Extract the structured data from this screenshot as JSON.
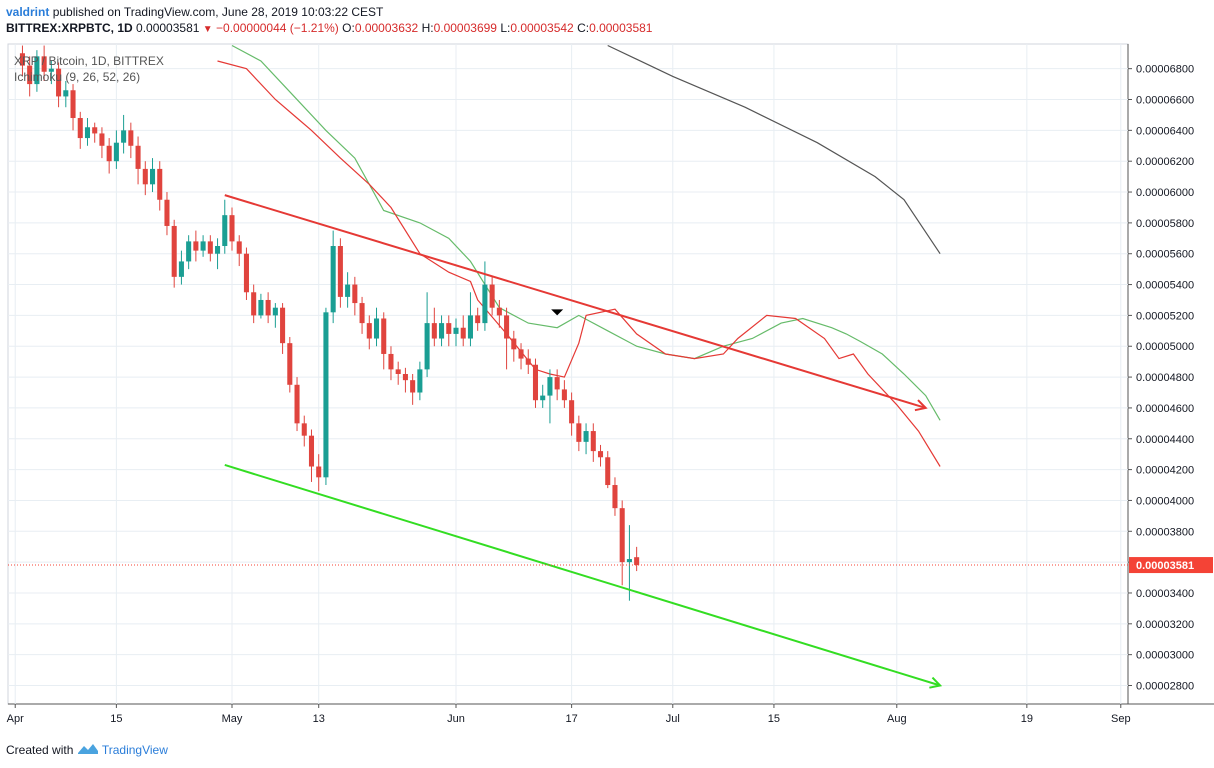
{
  "header": {
    "author": "valdrint",
    "published_text": "published on TradingView.com, June 28, 2019 10:03:22 CEST",
    "symbol": "BITTREX:XRPBTC, 1D",
    "last": "0.00003581",
    "change": "−0.00000044 (−1.21%)",
    "o_label": "O:",
    "o": "0.00003632",
    "h_label": "H:",
    "h": "0.00003699",
    "l_label": "L:",
    "l": "0.00003542",
    "c_label": "C:",
    "c": "0.00003581"
  },
  "footer": {
    "created_with": "Created with",
    "brand": "TradingView"
  },
  "colors": {
    "up": "#1a9e93",
    "down": "#e0443e",
    "tenkan": "#e53935",
    "kijun": "#66bb6a",
    "ma": "#555555",
    "resistance": "#e53935",
    "support": "#33dd22",
    "grid": "#e8eef3",
    "price_tag": "#f44336"
  },
  "chart_data": {
    "type": "candlestick",
    "title": "XRP / Bitcoin, 1D, BITTREX",
    "indicator": "Ichimoku (9, 26, 52, 26)",
    "y_ticks": [
      "0.00006800",
      "0.00006600",
      "0.00006400",
      "0.00006200",
      "0.00006000",
      "0.00005800",
      "0.00005600",
      "0.00005400",
      "0.00005200",
      "0.00005000",
      "0.00004800",
      "0.00004600",
      "0.00004400",
      "0.00004200",
      "0.00004000",
      "0.00003800",
      "0.00003600",
      "0.00003400",
      "0.00003200",
      "0.00003000",
      "0.00002800"
    ],
    "ylim": [
      2.68e-05,
      6.96e-05
    ],
    "x_ticks": [
      {
        "label": "Apr",
        "date": "2019-04-01"
      },
      {
        "label": "15",
        "date": "2019-04-15"
      },
      {
        "label": "May",
        "date": "2019-05-01"
      },
      {
        "label": "13",
        "date": "2019-05-13"
      },
      {
        "label": "Jun",
        "date": "2019-06-01"
      },
      {
        "label": "17",
        "date": "2019-06-17"
      },
      {
        "label": "Jul",
        "date": "2019-07-01"
      },
      {
        "label": "15",
        "date": "2019-07-15"
      },
      {
        "label": "Aug",
        "date": "2019-08-01"
      },
      {
        "label": "19",
        "date": "2019-08-19"
      },
      {
        "label": "Sep",
        "date": "2019-09-01"
      }
    ],
    "xlim": [
      "2019-03-31",
      "2019-09-02"
    ],
    "start_date": "2019-04-02",
    "current_price": 3.581e-05,
    "current_price_label": "0.00003581",
    "candles": [
      [
        6.9,
        6.82,
        6.95,
        6.75
      ],
      [
        6.82,
        6.7,
        6.88,
        6.62
      ],
      [
        6.7,
        6.88,
        6.92,
        6.65
      ],
      [
        6.88,
        6.78,
        6.95,
        6.72
      ],
      [
        6.78,
        6.8,
        6.85,
        6.7
      ],
      [
        6.8,
        6.62,
        6.84,
        6.55
      ],
      [
        6.62,
        6.66,
        6.72,
        6.55
      ],
      [
        6.66,
        6.48,
        6.7,
        6.4
      ],
      [
        6.48,
        6.35,
        6.52,
        6.28
      ],
      [
        6.35,
        6.42,
        6.48,
        6.3
      ],
      [
        6.42,
        6.38,
        6.45,
        6.32
      ],
      [
        6.38,
        6.3,
        6.42,
        6.22
      ],
      [
        6.3,
        6.2,
        6.35,
        6.12
      ],
      [
        6.2,
        6.32,
        6.4,
        6.15
      ],
      [
        6.32,
        6.4,
        6.5,
        6.25
      ],
      [
        6.4,
        6.3,
        6.45,
        6.22
      ],
      [
        6.3,
        6.15,
        6.36,
        6.05
      ],
      [
        6.15,
        6.05,
        6.2,
        5.98
      ],
      [
        6.05,
        6.15,
        6.22,
        6.0
      ],
      [
        6.15,
        5.95,
        6.2,
        5.88
      ],
      [
        5.95,
        5.78,
        6.0,
        5.72
      ],
      [
        5.78,
        5.45,
        5.82,
        5.38
      ],
      [
        5.45,
        5.55,
        5.62,
        5.4
      ],
      [
        5.55,
        5.68,
        5.72,
        5.5
      ],
      [
        5.68,
        5.62,
        5.75,
        5.55
      ],
      [
        5.62,
        5.68,
        5.72,
        5.58
      ],
      [
        5.68,
        5.6,
        5.72,
        5.55
      ],
      [
        5.6,
        5.65,
        5.7,
        5.5
      ],
      [
        5.65,
        5.85,
        5.95,
        5.6
      ],
      [
        5.85,
        5.68,
        5.9,
        5.62
      ],
      [
        5.68,
        5.6,
        5.72,
        5.52
      ],
      [
        5.6,
        5.35,
        5.64,
        5.3
      ],
      [
        5.35,
        5.2,
        5.4,
        5.15
      ],
      [
        5.2,
        5.3,
        5.34,
        5.18
      ],
      [
        5.3,
        5.2,
        5.35,
        5.15
      ],
      [
        5.2,
        5.25,
        5.28,
        5.12
      ],
      [
        5.25,
        5.02,
        5.28,
        4.95
      ],
      [
        5.02,
        4.75,
        5.06,
        4.7
      ],
      [
        4.75,
        4.5,
        4.8,
        4.45
      ],
      [
        4.5,
        4.42,
        4.55,
        4.35
      ],
      [
        4.42,
        4.22,
        4.46,
        4.12
      ],
      [
        4.22,
        4.15,
        4.3,
        4.06
      ],
      [
        4.15,
        5.22,
        5.25,
        4.1
      ],
      [
        5.22,
        5.65,
        5.75,
        5.15
      ],
      [
        5.65,
        5.32,
        5.7,
        5.25
      ],
      [
        5.32,
        5.4,
        5.48,
        5.25
      ],
      [
        5.4,
        5.28,
        5.45,
        5.2
      ],
      [
        5.28,
        5.15,
        5.32,
        5.08
      ],
      [
        5.15,
        5.05,
        5.2,
        4.98
      ],
      [
        5.05,
        5.18,
        5.25,
        5.0
      ],
      [
        5.18,
        4.95,
        5.22,
        4.85
      ],
      [
        4.95,
        4.85,
        5.0,
        4.78
      ],
      [
        4.85,
        4.82,
        4.9,
        4.75
      ],
      [
        4.82,
        4.78,
        4.86,
        4.7
      ],
      [
        4.78,
        4.7,
        4.82,
        4.62
      ],
      [
        4.7,
        4.85,
        4.9,
        4.65
      ],
      [
        4.85,
        5.15,
        5.35,
        4.8
      ],
      [
        5.15,
        5.05,
        5.25,
        5.0
      ],
      [
        5.05,
        5.15,
        5.2,
        5.0
      ],
      [
        5.15,
        5.08,
        5.2,
        5.0
      ],
      [
        5.08,
        5.12,
        5.18,
        5.0
      ],
      [
        5.12,
        5.05,
        5.2,
        5.0
      ],
      [
        5.05,
        5.2,
        5.35,
        5.0
      ],
      [
        5.2,
        5.15,
        5.25,
        5.1
      ],
      [
        5.15,
        5.4,
        5.55,
        5.1
      ],
      [
        5.4,
        5.25,
        5.45,
        5.2
      ],
      [
        5.25,
        5.2,
        5.3,
        5.12
      ],
      [
        5.2,
        5.05,
        5.25,
        4.85
      ],
      [
        5.05,
        4.98,
        5.1,
        4.9
      ],
      [
        4.98,
        4.92,
        5.02,
        4.85
      ],
      [
        4.92,
        4.88,
        4.98,
        4.82
      ],
      [
        4.88,
        4.65,
        4.92,
        4.6
      ],
      [
        4.65,
        4.68,
        4.75,
        4.6
      ],
      [
        4.68,
        4.8,
        4.85,
        4.5
      ],
      [
        4.8,
        4.72,
        4.85,
        4.65
      ],
      [
        4.72,
        4.65,
        4.78,
        4.6
      ],
      [
        4.65,
        4.5,
        4.7,
        4.42
      ],
      [
        4.5,
        4.38,
        4.55,
        4.32
      ],
      [
        4.38,
        4.45,
        4.5,
        4.3
      ],
      [
        4.45,
        4.32,
        4.5,
        4.25
      ],
      [
        4.32,
        4.28,
        4.36,
        4.22
      ],
      [
        4.28,
        4.1,
        4.32,
        4.08
      ],
      [
        4.1,
        3.95,
        4.15,
        3.9
      ],
      [
        3.95,
        3.6,
        4.0,
        3.45
      ],
      [
        3.6,
        3.62,
        3.84,
        3.35
      ],
      [
        3.632,
        3.581,
        3.699,
        3.542
      ]
    ],
    "price_scale_note": "OHLC values in units of 1e-5 BTC",
    "tenkan_line": [
      [
        27,
        6.85
      ],
      [
        31,
        6.8
      ],
      [
        35,
        6.6
      ],
      [
        38,
        6.48
      ],
      [
        40,
        6.4
      ],
      [
        44,
        6.22
      ],
      [
        48,
        6.05
      ],
      [
        51,
        5.9
      ],
      [
        55,
        5.6
      ],
      [
        59,
        5.48
      ],
      [
        62,
        5.42
      ],
      [
        63,
        5.3
      ],
      [
        67,
        5.08
      ],
      [
        71,
        4.85
      ],
      [
        73,
        4.82
      ],
      [
        75,
        4.8
      ],
      [
        77,
        5.02
      ],
      [
        78,
        5.2
      ],
      [
        82,
        5.24
      ],
      [
        85,
        5.08
      ],
      [
        89,
        4.95
      ],
      [
        93,
        4.92
      ],
      [
        97,
        4.95
      ],
      [
        99,
        5.05
      ],
      [
        103,
        5.2
      ],
      [
        107,
        5.18
      ],
      [
        111,
        5.05
      ],
      [
        113,
        4.92
      ],
      [
        115,
        4.95
      ],
      [
        117,
        4.82
      ],
      [
        121,
        4.62
      ],
      [
        124,
        4.45
      ],
      [
        127,
        4.22
      ]
    ],
    "kijun_line": [
      [
        29,
        6.95
      ],
      [
        33,
        6.85
      ],
      [
        37,
        6.65
      ],
      [
        42,
        6.4
      ],
      [
        46,
        6.22
      ],
      [
        50,
        5.88
      ],
      [
        55,
        5.8
      ],
      [
        59,
        5.7
      ],
      [
        62,
        5.55
      ],
      [
        66,
        5.25
      ],
      [
        70,
        5.15
      ],
      [
        74,
        5.12
      ],
      [
        77,
        5.2
      ],
      [
        81,
        5.1
      ],
      [
        85,
        5.0
      ],
      [
        89,
        4.95
      ],
      [
        93,
        4.92
      ],
      [
        97,
        5.0
      ],
      [
        101,
        5.05
      ],
      [
        105,
        5.15
      ],
      [
        108,
        5.18
      ],
      [
        112,
        5.12
      ],
      [
        114,
        5.08
      ],
      [
        116,
        5.03
      ],
      [
        119,
        4.95
      ],
      [
        122,
        4.82
      ],
      [
        125,
        4.68
      ],
      [
        127,
        4.52
      ]
    ],
    "ma_line": [
      [
        81,
        6.95
      ],
      [
        90,
        6.75
      ],
      [
        100,
        6.55
      ],
      [
        110,
        6.32
      ],
      [
        118,
        6.1
      ],
      [
        122,
        5.95
      ],
      [
        127,
        5.6
      ]
    ],
    "resistance_line": {
      "from": [
        "2019-04-30",
        5.98
      ],
      "to": [
        "2019-08-05",
        4.6
      ]
    },
    "support_line": {
      "from": [
        "2019-04-30",
        4.23
      ],
      "to": [
        "2019-08-07",
        2.8
      ]
    },
    "marker": {
      "date": "2019-06-15",
      "value": 5.22,
      "shape": "down-triangle"
    }
  }
}
